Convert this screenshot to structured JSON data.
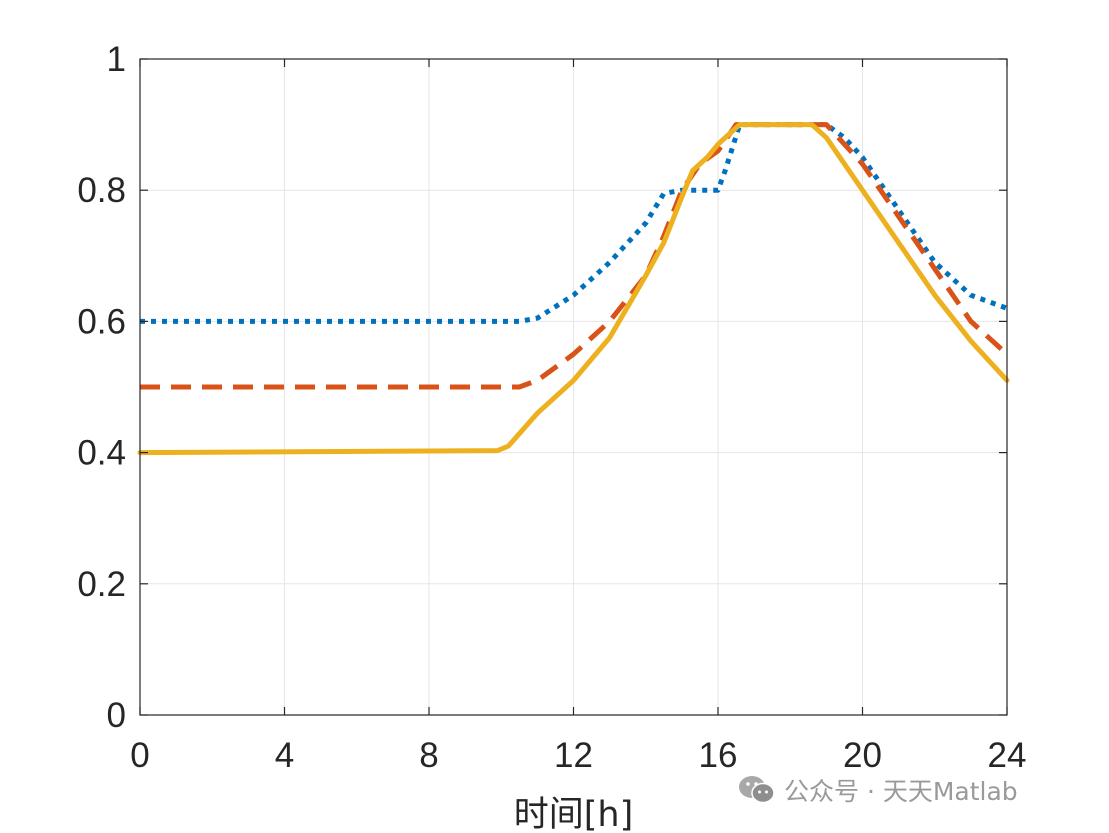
{
  "chart_data": {
    "type": "line",
    "title": "",
    "xlabel": "时间[h]",
    "ylabel": "",
    "xlim": [
      0,
      24
    ],
    "ylim": [
      0,
      1
    ],
    "xticks": [
      0,
      4,
      8,
      12,
      16,
      20,
      24
    ],
    "xtick_labels": [
      "0",
      "4",
      "8",
      "12",
      "16",
      "20",
      "24"
    ],
    "yticks": [
      0,
      0.2,
      0.4,
      0.6,
      0.8,
      1
    ],
    "ytick_labels": [
      "0",
      "0.2",
      "0.4",
      "0.6",
      "0.8",
      "1"
    ],
    "grid": true,
    "legend": false,
    "series": [
      {
        "color": "#0072BD",
        "line_style": "dotted",
        "x": [
          0,
          10.5,
          11,
          12,
          13,
          14,
          14.5,
          15,
          15.5,
          16,
          16.2,
          16.6,
          17,
          18,
          19,
          19.5,
          20,
          21,
          22,
          23,
          24
        ],
        "y": [
          0.6,
          0.6,
          0.605,
          0.64,
          0.69,
          0.75,
          0.795,
          0.8,
          0.8,
          0.8,
          0.83,
          0.9,
          0.9,
          0.9,
          0.9,
          0.88,
          0.85,
          0.77,
          0.69,
          0.64,
          0.62
        ]
      },
      {
        "color": "#D95319",
        "line_style": "dashed",
        "x": [
          0,
          10.5,
          11,
          12,
          13,
          14,
          14.5,
          15,
          15.5,
          16,
          16.5,
          17,
          18,
          19,
          20,
          21,
          22,
          23,
          24
        ],
        "y": [
          0.5,
          0.5,
          0.51,
          0.55,
          0.6,
          0.67,
          0.73,
          0.8,
          0.84,
          0.86,
          0.9,
          0.9,
          0.9,
          0.9,
          0.84,
          0.76,
          0.68,
          0.6,
          0.55
        ]
      },
      {
        "color": "#EDB120",
        "line_style": "solid",
        "x": [
          0,
          9.9,
          10.2,
          11,
          12,
          13,
          14,
          14.5,
          15,
          15.3,
          15.7,
          16,
          16.3,
          16.6,
          17,
          18,
          18.6,
          19,
          20,
          21,
          22,
          23,
          24
        ],
        "y": [
          0.4,
          0.403,
          0.41,
          0.46,
          0.51,
          0.575,
          0.67,
          0.72,
          0.79,
          0.83,
          0.85,
          0.87,
          0.885,
          0.9,
          0.9,
          0.9,
          0.9,
          0.88,
          0.8,
          0.72,
          0.64,
          0.57,
          0.51
        ]
      }
    ]
  },
  "watermark": {
    "text": "公众号 · 天天Matlab",
    "icon": "wechat-icon"
  }
}
